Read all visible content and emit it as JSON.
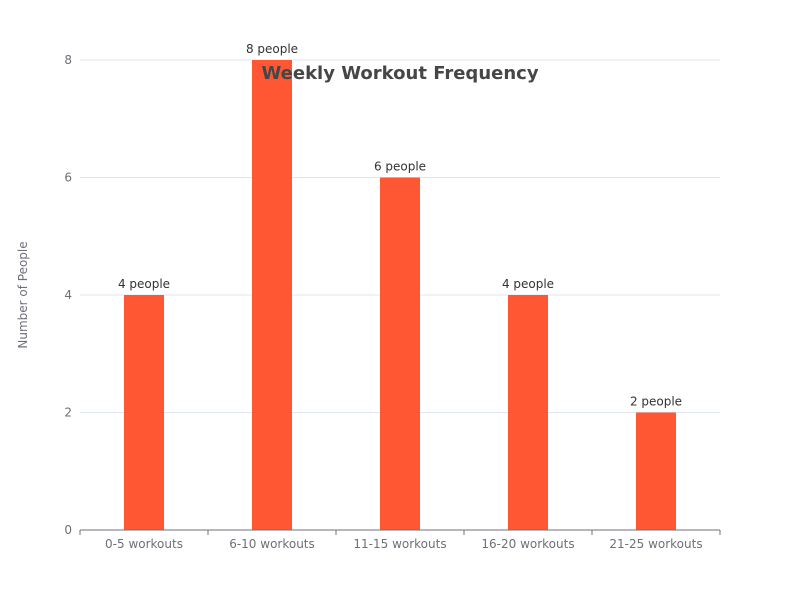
{
  "chart_data": {
    "type": "bar",
    "title": "Weekly Workout Frequency",
    "xlabel": "",
    "ylabel": "Number of People",
    "categories": [
      "0-5 workouts",
      "6-10 workouts",
      "11-15 workouts",
      "16-20 workouts",
      "21-25 workouts"
    ],
    "values": [
      4,
      8,
      6,
      4,
      2
    ],
    "data_labels": [
      "4 people",
      "8 people",
      "6 people",
      "4 people",
      "2 people"
    ],
    "y_ticks": [
      0,
      2,
      4,
      6,
      8
    ],
    "ylim": [
      0,
      8
    ],
    "grid": true,
    "legend": "none",
    "bar_color": "#ff5733"
  }
}
